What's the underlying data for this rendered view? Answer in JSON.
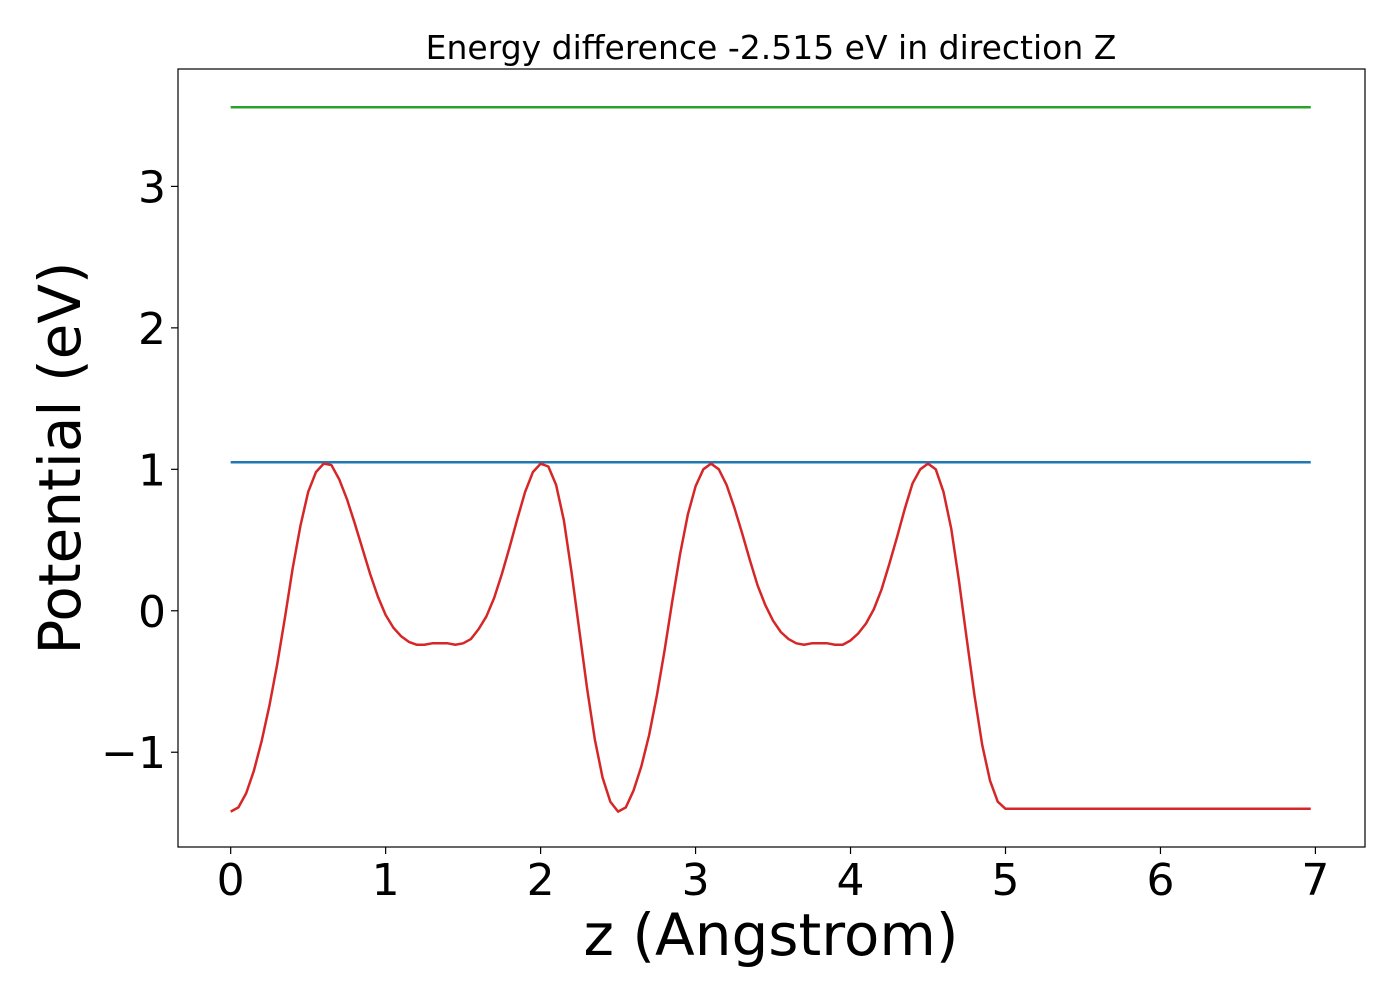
{
  "chart_data": {
    "type": "line",
    "title": "Energy difference -2.515 eV in direction Z",
    "xlabel": "z (Angstrom)",
    "ylabel": "Potential (eV)",
    "xlim": [
      -0.34,
      7.32
    ],
    "ylim": [
      -1.67,
      3.83
    ],
    "xticks": [
      0,
      1,
      2,
      3,
      4,
      5,
      6,
      7
    ],
    "xtick_labels": [
      "0",
      "1",
      "2",
      "3",
      "4",
      "5",
      "6",
      "7"
    ],
    "yticks": [
      -1,
      0,
      1,
      2,
      3
    ],
    "ytick_labels": [
      "−1",
      "0",
      "1",
      "2",
      "3"
    ],
    "grid": false,
    "series": [
      {
        "color": "#2ca02c",
        "x": [
          0,
          6.97
        ],
        "y": [
          3.56,
          3.56
        ]
      },
      {
        "color": "#1f77b4",
        "x": [
          0,
          6.97
        ],
        "y": [
          1.05,
          1.05
        ]
      },
      {
        "color": "#d62728",
        "x": [
          0.0,
          0.05,
          0.1,
          0.15,
          0.2,
          0.25,
          0.3,
          0.35,
          0.4,
          0.45,
          0.5,
          0.55,
          0.6,
          0.65,
          0.7,
          0.75,
          0.8,
          0.85,
          0.9,
          0.95,
          1.0,
          1.05,
          1.1,
          1.15,
          1.2,
          1.25,
          1.3,
          1.35,
          1.4,
          1.45,
          1.5,
          1.55,
          1.6,
          1.65,
          1.7,
          1.75,
          1.8,
          1.85,
          1.9,
          1.95,
          2.0,
          2.05,
          2.1,
          2.15,
          2.2,
          2.25,
          2.3,
          2.35,
          2.4,
          2.45,
          2.5,
          2.55,
          2.6,
          2.65,
          2.7,
          2.75,
          2.8,
          2.85,
          2.9,
          2.95,
          3.0,
          3.05,
          3.1,
          3.15,
          3.2,
          3.25,
          3.3,
          3.35,
          3.4,
          3.45,
          3.5,
          3.55,
          3.6,
          3.65,
          3.7,
          3.75,
          3.8,
          3.85,
          3.9,
          3.95,
          4.0,
          4.05,
          4.1,
          4.15,
          4.2,
          4.25,
          4.3,
          4.35,
          4.4,
          4.45,
          4.5,
          4.55,
          4.6,
          4.65,
          4.7,
          4.75,
          4.8,
          4.85,
          4.9,
          4.95,
          5.0,
          5.05,
          5.1,
          5.15,
          5.2,
          5.25,
          5.3,
          5.35,
          5.4,
          5.45,
          5.5,
          5.55,
          5.6,
          5.65,
          5.7,
          5.75,
          5.8,
          5.85,
          5.9,
          5.95,
          6.0,
          6.05,
          6.1,
          6.15,
          6.2,
          6.25,
          6.3,
          6.35,
          6.4,
          6.45,
          6.5,
          6.55,
          6.6,
          6.65,
          6.7,
          6.75,
          6.8,
          6.85,
          6.9,
          6.95,
          6.97
        ],
        "y": [
          -1.42,
          -1.39,
          -1.29,
          -1.13,
          -0.92,
          -0.67,
          -0.38,
          -0.05,
          0.3,
          0.6,
          0.84,
          0.98,
          1.04,
          1.03,
          0.93,
          0.79,
          0.62,
          0.44,
          0.26,
          0.1,
          -0.03,
          -0.12,
          -0.18,
          -0.22,
          -0.24,
          -0.24,
          -0.23,
          -0.23,
          -0.23,
          -0.24,
          -0.23,
          -0.2,
          -0.13,
          -0.04,
          0.09,
          0.26,
          0.45,
          0.65,
          0.84,
          0.98,
          1.04,
          1.02,
          0.89,
          0.64,
          0.27,
          -0.14,
          -0.55,
          -0.91,
          -1.18,
          -1.35,
          -1.42,
          -1.39,
          -1.27,
          -1.1,
          -0.88,
          -0.6,
          -0.28,
          0.07,
          0.4,
          0.68,
          0.88,
          1.0,
          1.04,
          1.0,
          0.89,
          0.73,
          0.55,
          0.36,
          0.18,
          0.04,
          -0.07,
          -0.15,
          -0.2,
          -0.23,
          -0.24,
          -0.23,
          -0.23,
          -0.23,
          -0.24,
          -0.24,
          -0.21,
          -0.16,
          -0.09,
          0.01,
          0.15,
          0.33,
          0.52,
          0.72,
          0.9,
          1.0,
          1.04,
          1.0,
          0.84,
          0.58,
          0.21,
          -0.2,
          -0.6,
          -0.95,
          -1.2,
          -1.35,
          -1.4,
          -1.4,
          -1.4,
          -1.4,
          -1.4,
          -1.4,
          -1.4,
          -1.4,
          -1.4,
          -1.4,
          -1.4,
          -1.4,
          -1.4,
          -1.4,
          -1.4,
          -1.4,
          -1.4,
          -1.4,
          -1.4,
          -1.4,
          -1.4,
          -1.4,
          -1.4,
          -1.4,
          -1.4,
          -1.4,
          -1.4,
          -1.4,
          -1.4,
          -1.4,
          -1.4,
          -1.4,
          -1.4,
          -1.4,
          -1.4,
          -1.4,
          -1.4,
          -1.4,
          -1.4,
          -1.4,
          -1.4
        ]
      }
    ]
  }
}
